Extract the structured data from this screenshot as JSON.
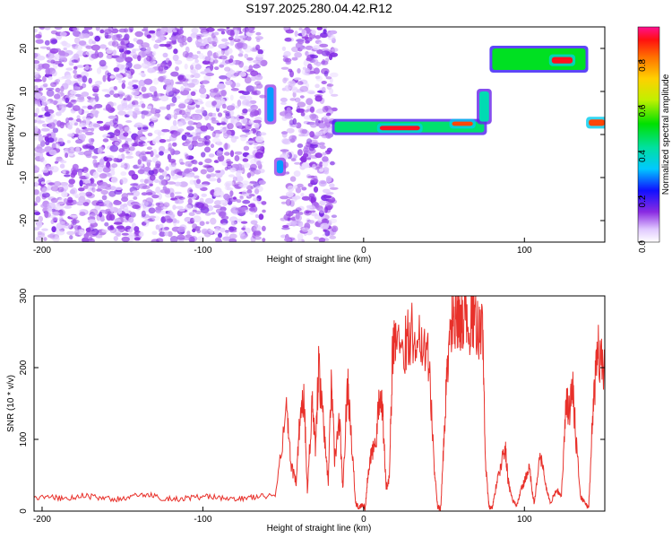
{
  "title": "S197.2025.280.04.42.R12",
  "chart_data": [
    {
      "type": "heatmap",
      "xlabel": "Height of straight line (km)",
      "ylabel": "Frequency (Hz)",
      "xlim": [
        -205,
        150
      ],
      "ylim": [
        -25,
        25
      ],
      "xticks": [
        -200,
        -100,
        0,
        100
      ],
      "yticks": [
        -20,
        -10,
        0,
        10,
        20
      ],
      "grid": false,
      "colorbar": {
        "label": "Normalized spectral amplitude",
        "range": [
          0.0,
          0.95
        ],
        "ticks": [
          0.0,
          0.2,
          0.4,
          0.6,
          0.8
        ]
      },
      "noise_regions": [
        {
          "x": [
            -205,
            -62
          ],
          "y": [
            -25,
            25
          ],
          "level": 0.1
        },
        {
          "x": [
            -50,
            -18
          ],
          "y": [
            -25,
            25
          ],
          "level": 0.1
        }
      ],
      "features": [
        {
          "x": [
            -60,
            -56
          ],
          "y": [
            3,
            11
          ],
          "level": 0.3
        },
        {
          "x": [
            -54,
            -50
          ],
          "y": [
            -9,
            -6
          ],
          "level": 0.3
        },
        {
          "x": [
            -18,
            75
          ],
          "y": [
            0.5,
            3
          ],
          "level": 0.45
        },
        {
          "x": [
            10,
            35
          ],
          "y": [
            1,
            2
          ],
          "level": 0.9
        },
        {
          "x": [
            55,
            68
          ],
          "y": [
            2,
            3
          ],
          "level": 0.85
        },
        {
          "x": [
            72,
            78
          ],
          "y": [
            3,
            10
          ],
          "level": 0.4
        },
        {
          "x": [
            80,
            138
          ],
          "y": [
            15,
            20
          ],
          "level": 0.5
        },
        {
          "x": [
            117,
            130
          ],
          "y": [
            16.5,
            18
          ],
          "level": 0.9
        },
        {
          "x": [
            140,
            150
          ],
          "y": [
            2,
            3.5
          ],
          "level": 0.85
        }
      ]
    },
    {
      "type": "line",
      "xlabel": "Height of straight line (km)",
      "ylabel": "SNR (10 * v/v)",
      "xlim": [
        -205,
        150
      ],
      "ylim": [
        0,
        300
      ],
      "xticks": [
        -200,
        -100,
        0,
        100
      ],
      "yticks": [
        0,
        100,
        200,
        300
      ],
      "grid": false,
      "color": "#e8302a",
      "x": [
        -205,
        -195,
        -185,
        -175,
        -165,
        -155,
        -145,
        -135,
        -125,
        -115,
        -105,
        -95,
        -85,
        -75,
        -65,
        -55,
        -48,
        -45,
        -42,
        -40,
        -37,
        -35,
        -32,
        -30,
        -28,
        -25,
        -22,
        -20,
        -18,
        -15,
        -13,
        -10,
        -8,
        -5,
        -3,
        -1,
        1,
        3,
        5,
        8,
        10,
        12,
        14,
        16,
        18,
        20,
        25,
        30,
        35,
        40,
        44,
        46,
        48,
        50,
        52,
        55,
        58,
        60,
        63,
        66,
        70,
        74,
        76,
        78,
        80,
        82,
        85,
        88,
        90,
        92,
        95,
        98,
        100,
        103,
        106,
        110,
        113,
        116,
        120,
        123,
        126,
        128,
        130,
        132,
        135,
        138,
        140,
        143,
        146,
        150
      ],
      "values": [
        18,
        20,
        17,
        22,
        19,
        16,
        20,
        23,
        18,
        17,
        19,
        21,
        16,
        18,
        20,
        22,
        140,
        60,
        40,
        120,
        160,
        30,
        150,
        90,
        200,
        120,
        40,
        190,
        70,
        130,
        30,
        180,
        120,
        10,
        5,
        10,
        5,
        60,
        80,
        100,
        170,
        130,
        30,
        50,
        220,
        250,
        230,
        250,
        240,
        230,
        60,
        5,
        5,
        100,
        200,
        270,
        260,
        270,
        280,
        265,
        260,
        250,
        60,
        5,
        5,
        30,
        60,
        90,
        40,
        20,
        5,
        30,
        40,
        60,
        10,
        80,
        40,
        10,
        30,
        20,
        150,
        140,
        180,
        100,
        20,
        10,
        5,
        160,
        220,
        200
      ]
    }
  ]
}
